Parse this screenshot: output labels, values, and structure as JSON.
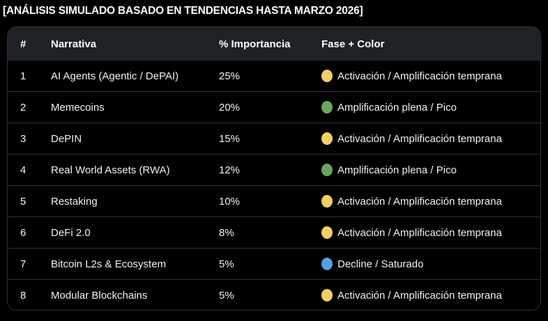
{
  "title": "[ANÁLISIS SIMULADO BASADO EN TENDENCIAS HASTA MARZO 2026]",
  "table": {
    "columns": [
      "#",
      "Narrativa",
      "% Importancia",
      "Fase + Color"
    ],
    "rows": [
      {
        "rank": "1",
        "narrative": "AI Agents (Agentic / DePAI)",
        "importance": "25%",
        "phase": "Activación / Amplificación temprana",
        "dot_icon": "yellow-circle",
        "dot_color": "#f2cf63"
      },
      {
        "rank": "2",
        "narrative": "Memecoins",
        "importance": "20%",
        "phase": "Amplificación plena / Pico",
        "dot_icon": "green-circle",
        "dot_color": "#6da65c"
      },
      {
        "rank": "3",
        "narrative": "DePIN",
        "importance": "15%",
        "phase": "Activación / Amplificación temprana",
        "dot_icon": "yellow-circle",
        "dot_color": "#f2cf63"
      },
      {
        "rank": "4",
        "narrative": "Real World Assets (RWA)",
        "importance": "12%",
        "phase": "Amplificación plena / Pico",
        "dot_icon": "green-circle",
        "dot_color": "#6da65c"
      },
      {
        "rank": "5",
        "narrative": "Restaking",
        "importance": "10%",
        "phase": "Activación / Amplificación temprana",
        "dot_icon": "yellow-circle",
        "dot_color": "#f2cf63"
      },
      {
        "rank": "6",
        "narrative": "DeFi 2.0",
        "importance": "8%",
        "phase": "Activación / Amplificación temprana",
        "dot_icon": "yellow-circle",
        "dot_color": "#f2cf63"
      },
      {
        "rank": "7",
        "narrative": "Bitcoin L2s & Ecosystem",
        "importance": "5%",
        "phase": "Decline / Saturado",
        "dot_icon": "blue-circle",
        "dot_color": "#55a0e6"
      },
      {
        "rank": "8",
        "narrative": "Modular Blockchains",
        "importance": "5%",
        "phase": "Activación / Amplificación temprana",
        "dot_icon": "yellow-circle",
        "dot_color": "#f2cf63"
      }
    ]
  },
  "colors": {
    "background": "#000000",
    "card_border": "#2f3336",
    "header_background": "#1e2126",
    "row_divider": "#2f3336",
    "text": "#eff1f2",
    "status_yellow": "#f2cf63",
    "status_green": "#6da65c",
    "status_blue": "#55a0e6"
  }
}
